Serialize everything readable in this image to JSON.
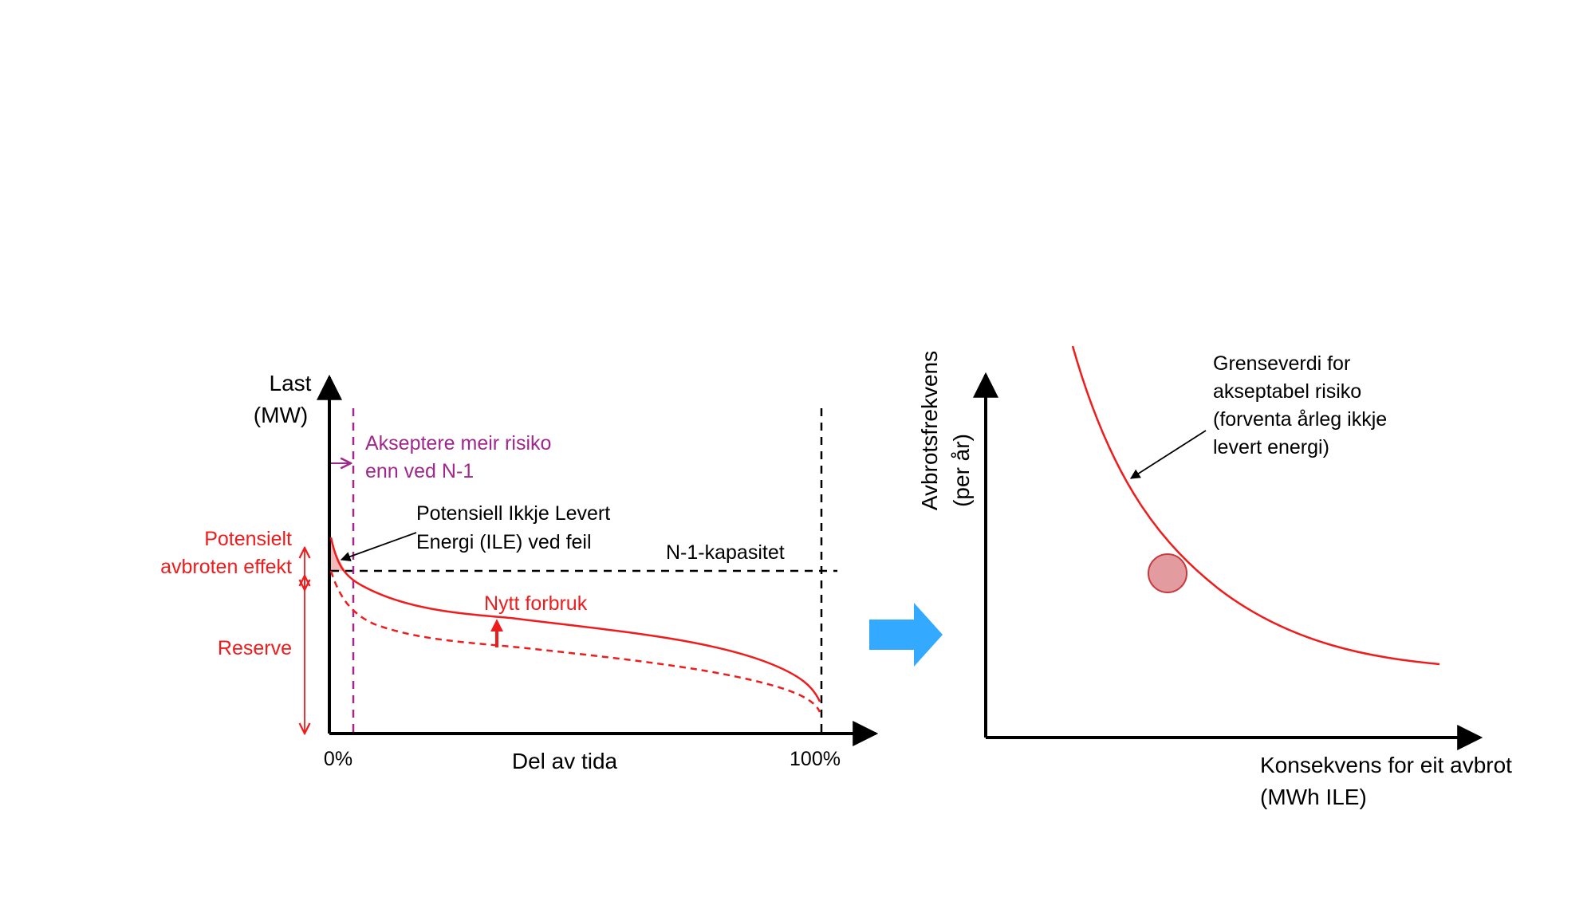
{
  "left_chart": {
    "y_axis_label_line1": "Last",
    "y_axis_label_line2": "(MW)",
    "x_axis_label": "Del av tida",
    "x_tick_start": "0%",
    "x_tick_end": "100%",
    "accept_risk_line1": "Akseptere meir risiko",
    "accept_risk_line2": "enn ved N-1",
    "ile_line1": "Potensiell Ikkje Levert",
    "ile_line2": "Energi (ILE) ved feil",
    "n1_capacity": "N-1-kapasitet",
    "potential_line1": "Potensielt",
    "potential_line2": "avbroten effekt",
    "reserve": "Reserve",
    "new_consumption": "Nytt forbruk"
  },
  "right_chart": {
    "y_axis_label_line1": "Avbrotsfrekvens",
    "y_axis_label_line2": "(per år)",
    "x_axis_label_line1": "Konsekvens for eit avbrot",
    "x_axis_label_line2": "(MWh ILE)",
    "limit_line1": "Grenseverdi for",
    "limit_line2": "akseptabel risiko",
    "limit_line3": "(forventa årleg ikkje",
    "limit_line4": "levert energi)"
  },
  "colors": {
    "red": "#ee1c1c",
    "purple": "#a0288c",
    "arrow_blue": "#33aaff",
    "circle_fill": "#e29b9e",
    "circle_stroke": "#c8393e",
    "shade": "#f4b9b9"
  },
  "icons": {
    "transition": "right-arrow-icon"
  }
}
